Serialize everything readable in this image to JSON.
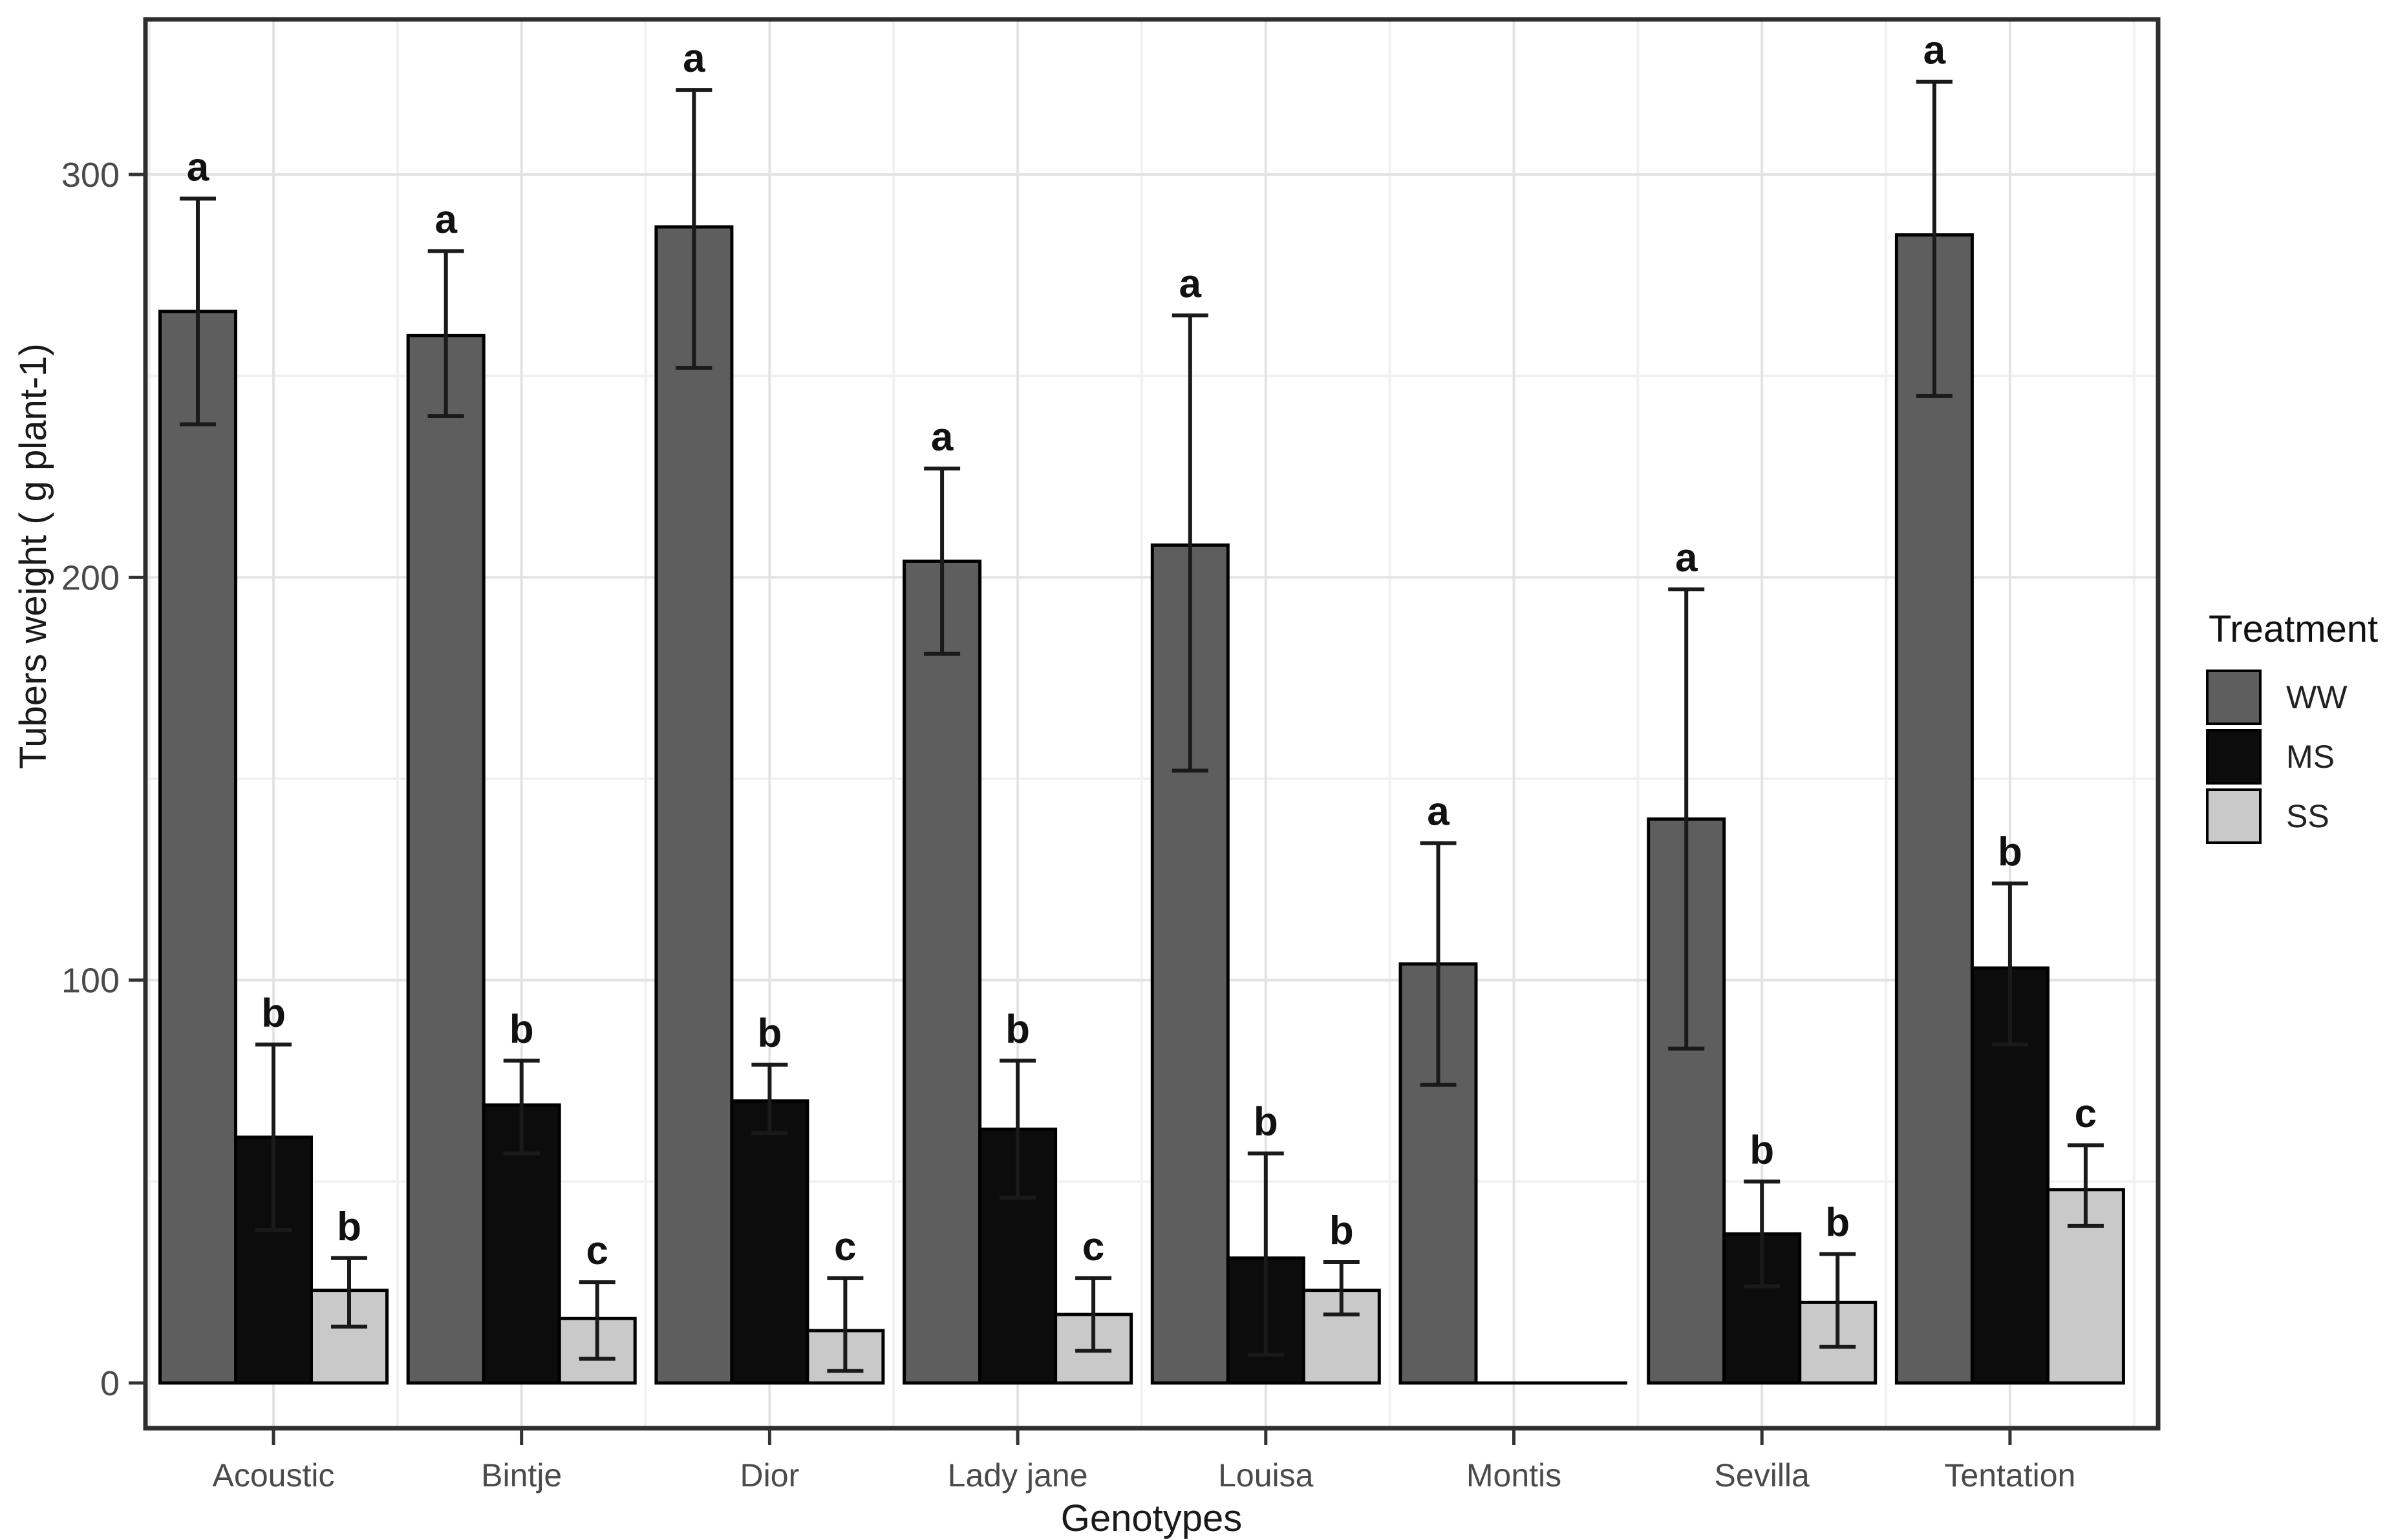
{
  "chart_data": {
    "type": "bar",
    "title": "",
    "xlabel": "Genotypes",
    "ylabel": "Tubers weight ( g plant-1)",
    "categories": [
      "Acoustic",
      "Bintje",
      "Dior",
      "Lady jane",
      "Louisa",
      "Montis",
      "Sevilla",
      "Tentation"
    ],
    "series": [
      {
        "name": "WW",
        "color": "#5e5e5e",
        "values": [
          266,
          260,
          287,
          204,
          208,
          104,
          140,
          285
        ],
        "err_low": [
          238,
          240,
          252,
          181,
          152,
          74,
          83,
          245
        ],
        "err_high": [
          294,
          281,
          321,
          227,
          265,
          134,
          197,
          323
        ],
        "letters": [
          "a",
          "a",
          "a",
          "a",
          "a",
          "a",
          "a",
          "a"
        ]
      },
      {
        "name": "MS",
        "color": "#0c0c0c",
        "values": [
          61,
          69,
          70,
          63,
          31,
          0,
          37,
          103
        ],
        "err_low": [
          38,
          57,
          62,
          46,
          7,
          null,
          24,
          84
        ],
        "err_high": [
          84,
          80,
          79,
          80,
          57,
          null,
          50,
          124
        ],
        "letters": [
          "b",
          "b",
          "b",
          "b",
          "b",
          null,
          "b",
          "b"
        ]
      },
      {
        "name": "SS",
        "color": "#c9c9c9",
        "values": [
          23,
          16,
          13,
          17,
          23,
          0,
          20,
          48
        ],
        "err_low": [
          14,
          6,
          3,
          8,
          17,
          null,
          9,
          39
        ],
        "err_high": [
          31,
          25,
          26,
          26,
          30,
          null,
          32,
          59
        ],
        "letters": [
          "b",
          "c",
          "c",
          "c",
          "b",
          null,
          "b",
          "c"
        ]
      }
    ],
    "ylim": [
      0,
      338
    ],
    "yticks": [
      0,
      100,
      200,
      300
    ],
    "yticks_minor": [
      50,
      150,
      250
    ],
    "grid": true,
    "legend_title": "Treatment",
    "legend_position": "right",
    "legend_items": [
      "WW",
      "MS",
      "SS"
    ]
  },
  "colors": {
    "background": "#ffffff",
    "panel_border": "#2e2e2e",
    "grid_major": "#e3e3e3",
    "grid_minor": "#f1f1f1",
    "tick_mark": "#333333",
    "tick_label": "#4a4a4a",
    "error_bar": "#1a1a1a",
    "bar_stroke": "#000000",
    "letter": "#111111"
  }
}
